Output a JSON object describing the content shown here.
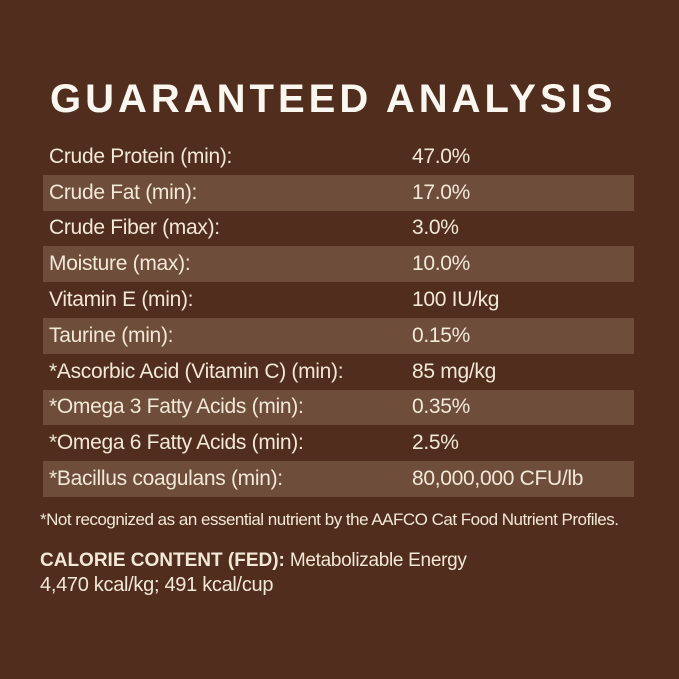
{
  "theme": {
    "background": "#502d1c",
    "stripe": "#6e4d3a",
    "text": "#f2e8d6",
    "title_color": "#faf6f0"
  },
  "title": "GUARANTEED ANALYSIS",
  "analysis_table": {
    "rows": [
      {
        "label": "Crude Protein (min):",
        "value": "47.0%"
      },
      {
        "label": "Crude Fat (min):",
        "value": "17.0%"
      },
      {
        "label": "Crude Fiber (max):",
        "value": "3.0%"
      },
      {
        "label": "Moisture (max):",
        "value": "10.0%"
      },
      {
        "label": "Vitamin E (min):",
        "value": "100 IU/kg"
      },
      {
        "label": "Taurine (min):",
        "value": "0.15%"
      },
      {
        "label": "*Ascorbic Acid (Vitamin C) (min):",
        "value": "85 mg/kg"
      },
      {
        "label": "*Omega 3 Fatty Acids (min):",
        "value": "0.35%"
      },
      {
        "label": "*Omega 6 Fatty Acids (min):",
        "value": "2.5%"
      },
      {
        "label": "*Bacillus coagulans (min):",
        "value": "80,000,000 CFU/lb"
      }
    ]
  },
  "footnote": "*Not recognized as an essential nutrient by the AAFCO Cat Food Nutrient Profiles.",
  "calorie_content": {
    "heading": "CALORIE CONTENT (FED):",
    "description": "Metabolizable Energy",
    "values": "4,470 kcal/kg; 491 kcal/cup"
  }
}
